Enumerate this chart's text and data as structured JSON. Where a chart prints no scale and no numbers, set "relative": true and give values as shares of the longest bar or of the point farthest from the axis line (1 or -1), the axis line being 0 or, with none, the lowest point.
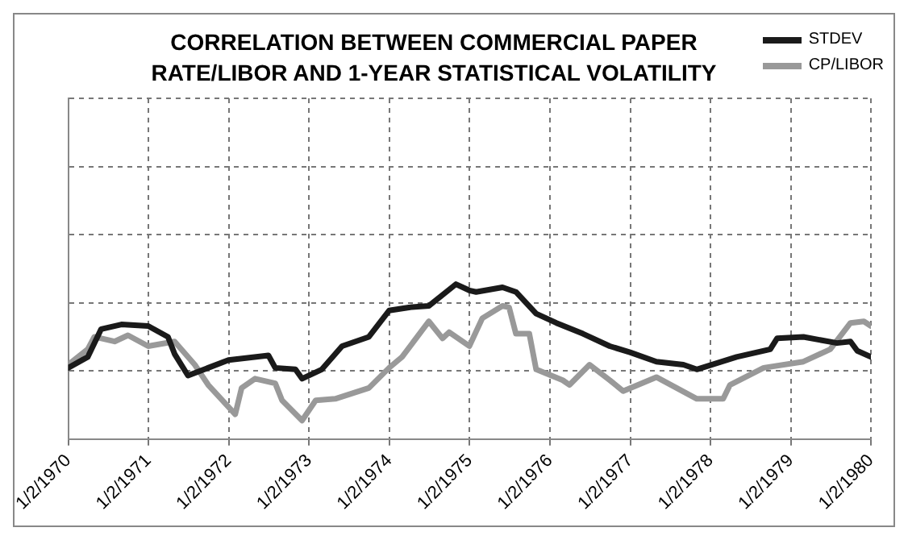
{
  "chart_data": {
    "type": "line",
    "title": "CORRELATION BETWEEN COMMERCIAL PAPER RATE/LIBOR AND 1-YEAR STATISTICAL VOLATILITY",
    "relative": true,
    "grid": true,
    "legend": "top right",
    "marker": "none",
    "line_style": "solid",
    "xlim": [
      "1970-01-02",
      "1980-01-02"
    ],
    "xticks": [
      {
        "value": "1970-01-02",
        "label": "1/2/1970"
      },
      {
        "value": "1971-01-02",
        "label": "1/2/1971"
      },
      {
        "value": "1972-01-02",
        "label": "1/2/1972"
      },
      {
        "value": "1973-01-02",
        "label": "1/2/1973"
      },
      {
        "value": "1974-01-02",
        "label": "1/2/1974"
      },
      {
        "value": "1975-01-02",
        "label": "1/2/1975"
      },
      {
        "value": "1976-01-02",
        "label": "1/2/1976"
      },
      {
        "value": "1977-01-02",
        "label": "1/2/1977"
      },
      {
        "value": "1978-01-02",
        "label": "1/2/1978"
      },
      {
        "value": "1979-01-02",
        "label": "1/2/1979"
      },
      {
        "value": "1980-01-02",
        "label": "1/2/1980"
      }
    ],
    "series": [
      {
        "name": "STDEV",
        "color": "#1a1a1a",
        "x": [
          "1970-01-02",
          "1970-04",
          "1970-06",
          "1970-09",
          "1971-01",
          "1971-04",
          "1971-05",
          "1971-07",
          "1971-10",
          "1972-01",
          "1972-07",
          "1972-08",
          "1972-11",
          "1972-12",
          "1973-03",
          "1973-06",
          "1973-10",
          "1974-01",
          "1974-04",
          "1974-07",
          "1974-11",
          "1975-01",
          "1975-02",
          "1975-06",
          "1975-08",
          "1975-11",
          "1976-02",
          "1976-06",
          "1976-10",
          "1977-01",
          "1977-05",
          "1977-09",
          "1977-11",
          "1978-05",
          "1978-10",
          "1978-11",
          "1979-03",
          "1979-08",
          "1979-10",
          "1979-11",
          "1980-01-02"
        ],
        "values": [
          0.46,
          0.53,
          0.71,
          0.74,
          0.73,
          0.66,
          0.55,
          0.41,
          0.46,
          0.51,
          0.54,
          0.46,
          0.45,
          0.39,
          0.45,
          0.6,
          0.66,
          0.83,
          0.85,
          0.86,
          1.0,
          0.96,
          0.95,
          0.98,
          0.95,
          0.81,
          0.75,
          0.68,
          0.6,
          0.56,
          0.5,
          0.48,
          0.45,
          0.53,
          0.58,
          0.65,
          0.66,
          0.62,
          0.63,
          0.57,
          0.53
        ]
      },
      {
        "name": "CP/LIBOR",
        "color": "#999999",
        "x": [
          "1970-01-02",
          "1970-04",
          "1970-05",
          "1970-08",
          "1970-10",
          "1971-01",
          "1971-05",
          "1971-08",
          "1971-10",
          "1972-02",
          "1972-03",
          "1972-05",
          "1972-08",
          "1972-09",
          "1972-12",
          "1973-02",
          "1973-05",
          "1973-10",
          "1974-01",
          "1974-03",
          "1974-07",
          "1974-09",
          "1974-10",
          "1975-01",
          "1975-03",
          "1975-06",
          "1975-07",
          "1975-08",
          "1975-10",
          "1975-11",
          "1976-03",
          "1976-04",
          "1976-07",
          "1976-10",
          "1976-12",
          "1977-05",
          "1977-08",
          "1977-11",
          "1978-03",
          "1978-04",
          "1978-09",
          "1979-03",
          "1979-07",
          "1979-10",
          "1979-12",
          "1980-01-02"
        ],
        "values": [
          0.48,
          0.58,
          0.66,
          0.63,
          0.67,
          0.6,
          0.63,
          0.48,
          0.35,
          0.16,
          0.33,
          0.39,
          0.36,
          0.25,
          0.12,
          0.25,
          0.26,
          0.33,
          0.46,
          0.53,
          0.76,
          0.65,
          0.69,
          0.6,
          0.78,
          0.86,
          0.85,
          0.68,
          0.68,
          0.45,
          0.38,
          0.35,
          0.48,
          0.38,
          0.31,
          0.4,
          0.33,
          0.26,
          0.26,
          0.35,
          0.46,
          0.5,
          0.58,
          0.75,
          0.76,
          0.73
        ]
      }
    ]
  }
}
